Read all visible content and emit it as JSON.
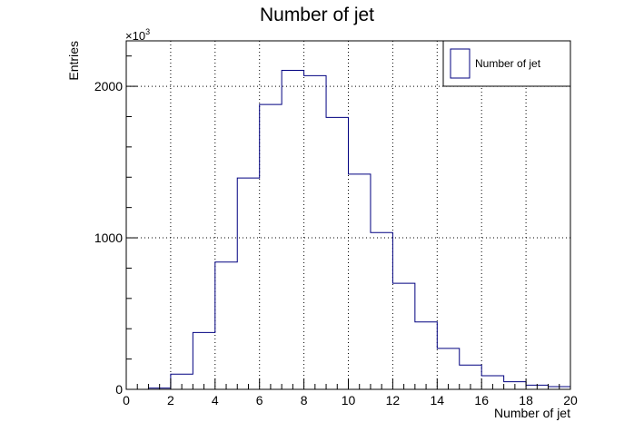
{
  "chart_data": {
    "type": "bar",
    "title": "Number of jet",
    "xlabel": "Number of jet",
    "ylabel": "Entries",
    "y_multiplier": "×10",
    "y_multiplier_exp": "3",
    "xlim": [
      0,
      20
    ],
    "ylim": [
      0,
      2300
    ],
    "x_ticks": [
      0,
      2,
      4,
      6,
      8,
      10,
      12,
      14,
      16,
      18,
      20
    ],
    "y_ticks": [
      0,
      1000,
      2000
    ],
    "grid": true,
    "legend_position": "top-right",
    "series": [
      {
        "name": "Number of jet",
        "color": "#000080",
        "bins": [
          {
            "x_low": 0,
            "x_high": 1,
            "value": 0
          },
          {
            "x_low": 1,
            "x_high": 2,
            "value": 8
          },
          {
            "x_low": 2,
            "x_high": 3,
            "value": 100
          },
          {
            "x_low": 3,
            "x_high": 4,
            "value": 375
          },
          {
            "x_low": 4,
            "x_high": 5,
            "value": 840
          },
          {
            "x_low": 5,
            "x_high": 6,
            "value": 1395
          },
          {
            "x_low": 6,
            "x_high": 7,
            "value": 1880
          },
          {
            "x_low": 7,
            "x_high": 8,
            "value": 2105
          },
          {
            "x_low": 8,
            "x_high": 9,
            "value": 2070
          },
          {
            "x_low": 9,
            "x_high": 10,
            "value": 1795
          },
          {
            "x_low": 10,
            "x_high": 11,
            "value": 1420
          },
          {
            "x_low": 11,
            "x_high": 12,
            "value": 1035
          },
          {
            "x_low": 12,
            "x_high": 13,
            "value": 700
          },
          {
            "x_low": 13,
            "x_high": 14,
            "value": 445
          },
          {
            "x_low": 14,
            "x_high": 15,
            "value": 270
          },
          {
            "x_low": 15,
            "x_high": 16,
            "value": 160
          },
          {
            "x_low": 16,
            "x_high": 17,
            "value": 90
          },
          {
            "x_low": 17,
            "x_high": 18,
            "value": 50
          },
          {
            "x_low": 18,
            "x_high": 19,
            "value": 28
          },
          {
            "x_low": 19,
            "x_high": 20,
            "value": 18
          }
        ]
      }
    ]
  }
}
